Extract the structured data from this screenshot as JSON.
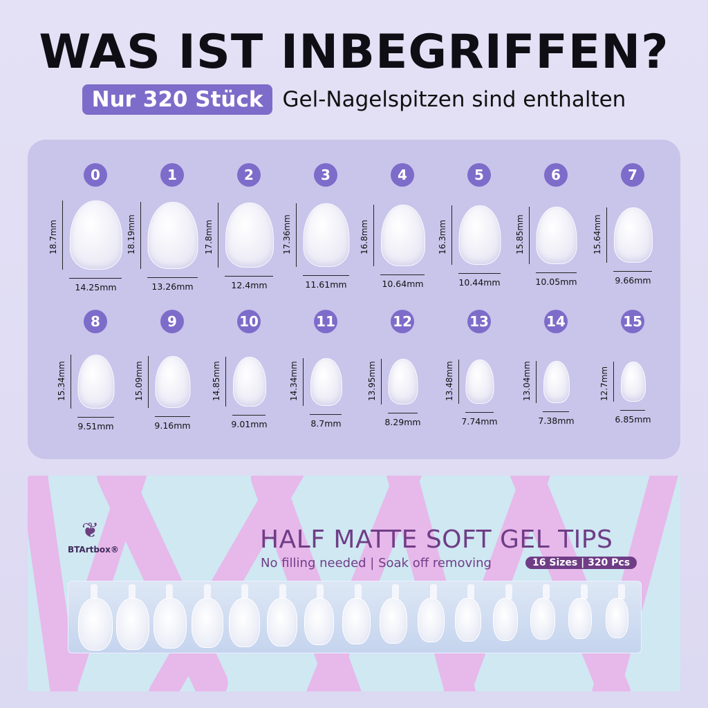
{
  "header": {
    "title": "WAS IST INBEGRIFFEN?",
    "highlight": "Nur 320 Stück",
    "subtitle": "Gel-Nagelspitzen sind enthalten"
  },
  "sizes": [
    {
      "n": "0",
      "h": "18.7mm",
      "w": "14.25mm"
    },
    {
      "n": "1",
      "h": "18.19mm",
      "w": "13.26mm"
    },
    {
      "n": "2",
      "h": "17.8mm",
      "w": "12.4mm"
    },
    {
      "n": "3",
      "h": "17.36mm",
      "w": "11.61mm"
    },
    {
      "n": "4",
      "h": "16.8mm",
      "w": "10.64mm"
    },
    {
      "n": "5",
      "h": "16.3mm",
      "w": "10.44mm"
    },
    {
      "n": "6",
      "h": "15.85mm",
      "w": "10.05mm"
    },
    {
      "n": "7",
      "h": "15.64mm",
      "w": "9.66mm"
    },
    {
      "n": "8",
      "h": "15.34mm",
      "w": "9.51mm"
    },
    {
      "n": "9",
      "h": "15.09mm",
      "w": "9.16mm"
    },
    {
      "n": "10",
      "h": "14.85mm",
      "w": "9.01mm"
    },
    {
      "n": "11",
      "h": "14.34mm",
      "w": "8.7mm"
    },
    {
      "n": "12",
      "h": "13.95mm",
      "w": "8.29mm"
    },
    {
      "n": "13",
      "h": "13.48mm",
      "w": "7.74mm"
    },
    {
      "n": "14",
      "h": "13.04mm",
      "w": "7.38mm"
    },
    {
      "n": "15",
      "h": "12.7mm",
      "w": "6.85mm"
    }
  ],
  "box": {
    "brand": "BTArtbox®",
    "logo_icon": "praying-hands-butterfly-icon",
    "title": "HALF MATTE SOFT GEL TIPS",
    "tagline": "No filling needed  |  Soak off removing",
    "badge": "16 Sizes | 320 Pcs"
  },
  "colors": {
    "accent": "#7d6cc9",
    "box_purple": "#6f3d86",
    "stripe_pink": "#e7b8ea",
    "box_blue": "#cfe8f2"
  }
}
